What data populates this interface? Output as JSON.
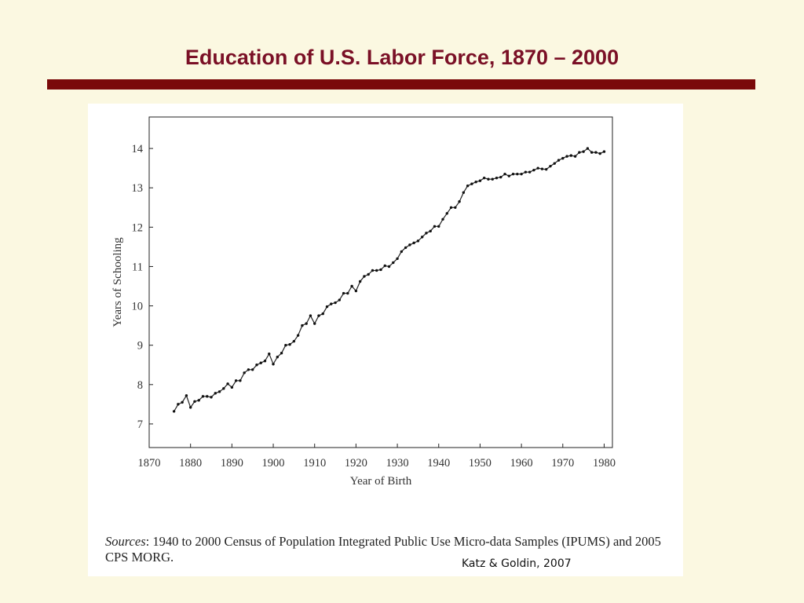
{
  "slide": {
    "title": "Education of U.S. Labor Force, 1870 – 2000",
    "accent_color": "#7A1026",
    "rule_color": "#7A0A0A",
    "background_color": "#FBF8E1"
  },
  "figure": {
    "sources_label": "Sources",
    "sources_text": ": 1940 to 2000 Census of Population Integrated Public Use Micro-data Samples (IPUMS) and 2005 CPS MORG.",
    "credit": "Katz &  Goldin, 2007"
  },
  "chart_data": {
    "type": "line",
    "title": "",
    "xlabel": "Year of Birth",
    "ylabel": "Years of Schooling",
    "xlim": [
      1870,
      1982
    ],
    "ylim": [
      6.4,
      14.8
    ],
    "xticks": [
      1870,
      1880,
      1890,
      1900,
      1910,
      1920,
      1930,
      1940,
      1950,
      1960,
      1970,
      1980
    ],
    "yticks": [
      7,
      8,
      9,
      10,
      11,
      12,
      13,
      14
    ],
    "grid": false,
    "legend": "none",
    "series": [
      {
        "x": [
          1876,
          1877,
          1878,
          1879,
          1880,
          1881,
          1882,
          1883,
          1884,
          1885,
          1886,
          1887,
          1888,
          1889,
          1890,
          1891,
          1892,
          1893,
          1894,
          1895,
          1896,
          1897,
          1898,
          1899,
          1900,
          1901,
          1902,
          1903,
          1904,
          1905,
          1906,
          1907,
          1908,
          1909,
          1910,
          1911,
          1912,
          1913,
          1914,
          1915,
          1916,
          1917,
          1918,
          1919,
          1920,
          1921,
          1922,
          1923,
          1924,
          1925,
          1926,
          1927,
          1928,
          1929,
          1930,
          1931,
          1932,
          1933,
          1934,
          1935,
          1936,
          1937,
          1938,
          1939,
          1940,
          1941,
          1942,
          1943,
          1944,
          1945,
          1946,
          1947,
          1948,
          1949,
          1950,
          1951,
          1952,
          1953,
          1954,
          1955,
          1956,
          1957,
          1958,
          1959,
          1960,
          1961,
          1962,
          1963,
          1964,
          1965,
          1966,
          1967,
          1968,
          1969,
          1970,
          1971,
          1972,
          1973,
          1974,
          1975,
          1976,
          1977,
          1978,
          1979,
          1980
        ],
        "values": [
          7.32,
          7.5,
          7.55,
          7.72,
          7.42,
          7.57,
          7.6,
          7.7,
          7.7,
          7.68,
          7.78,
          7.82,
          7.9,
          8.02,
          7.93,
          8.1,
          8.1,
          8.3,
          8.38,
          8.38,
          8.5,
          8.55,
          8.6,
          8.78,
          8.52,
          8.7,
          8.8,
          9.0,
          9.02,
          9.1,
          9.25,
          9.5,
          9.55,
          9.75,
          9.55,
          9.75,
          9.8,
          9.98,
          10.05,
          10.08,
          10.15,
          10.32,
          10.32,
          10.5,
          10.38,
          10.62,
          10.75,
          10.8,
          10.9,
          10.9,
          10.92,
          11.02,
          11.0,
          11.1,
          11.2,
          11.38,
          11.48,
          11.55,
          11.6,
          11.65,
          11.75,
          11.85,
          11.9,
          12.02,
          12.02,
          12.2,
          12.35,
          12.5,
          12.5,
          12.65,
          12.88,
          13.05,
          13.1,
          13.15,
          13.18,
          13.25,
          13.22,
          13.22,
          13.25,
          13.27,
          13.35,
          13.3,
          13.35,
          13.35,
          13.35,
          13.4,
          13.4,
          13.45,
          13.5,
          13.48,
          13.47,
          13.55,
          13.62,
          13.7,
          13.75,
          13.8,
          13.82,
          13.8,
          13.9,
          13.92,
          14.0,
          13.9,
          13.9,
          13.87,
          13.92
        ]
      }
    ]
  }
}
